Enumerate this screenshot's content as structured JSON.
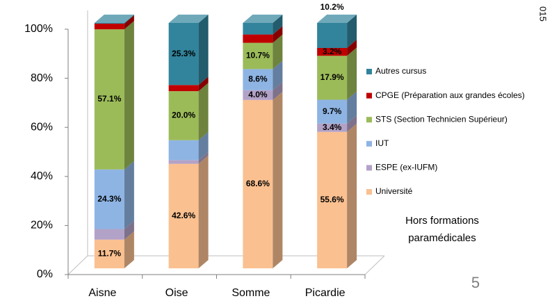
{
  "chart_data": {
    "type": "bar3d_stacked",
    "categories": [
      "Aisne",
      "Oise",
      "Somme",
      "Picardie"
    ],
    "series": [
      {
        "name": "Université",
        "color": "#fac090",
        "values": [
          11.7,
          42.6,
          68.6,
          55.6
        ],
        "value_labels": [
          "11.7%",
          "42.6%",
          "68.6%",
          "55.6%"
        ]
      },
      {
        "name": "ESPE (ex-IUFM)",
        "color": "#b3a2c7",
        "values": [
          4.3,
          1.5,
          4.0,
          3.4
        ],
        "value_labels": [
          null,
          null,
          "4.0%",
          "3.4%"
        ]
      },
      {
        "name": "IUT",
        "color": "#8eb4e3",
        "values": [
          24.3,
          8.1,
          8.6,
          9.7
        ],
        "value_labels": [
          "24.3%",
          null,
          "8.6%",
          "9.7%"
        ]
      },
      {
        "name": "STS (Section Technicien Supérieur)",
        "color": "#9bbb59",
        "values": [
          57.1,
          20.0,
          10.7,
          17.9
        ],
        "value_labels": [
          "57.1%",
          "20.0%",
          "10.7%",
          "17.9%"
        ]
      },
      {
        "name": "CPGE (Préparation aux grandes écoles)",
        "color": "#c00000",
        "values": [
          2.3,
          2.5,
          3.4,
          3.2
        ],
        "value_labels": [
          null,
          null,
          null,
          "3.2%"
        ]
      },
      {
        "name": "Autres cursus",
        "color": "#31849b",
        "values": [
          0.3,
          25.3,
          4.7,
          10.2
        ],
        "value_labels": [
          null,
          "25.3%",
          null,
          "10.2%"
        ]
      }
    ],
    "ylim": [
      0,
      100
    ],
    "yticks": [
      {
        "value": 0,
        "label": "0%"
      },
      {
        "value": 20,
        "label": "20%"
      },
      {
        "value": 40,
        "label": "40%"
      },
      {
        "value": 60,
        "label": "60%"
      },
      {
        "value": 80,
        "label": "80%"
      },
      {
        "value": 100,
        "label": "100%"
      }
    ],
    "annotation": [
      "Hors formations",
      "paramédicales"
    ],
    "page_number": "5",
    "corner_text": "015"
  }
}
